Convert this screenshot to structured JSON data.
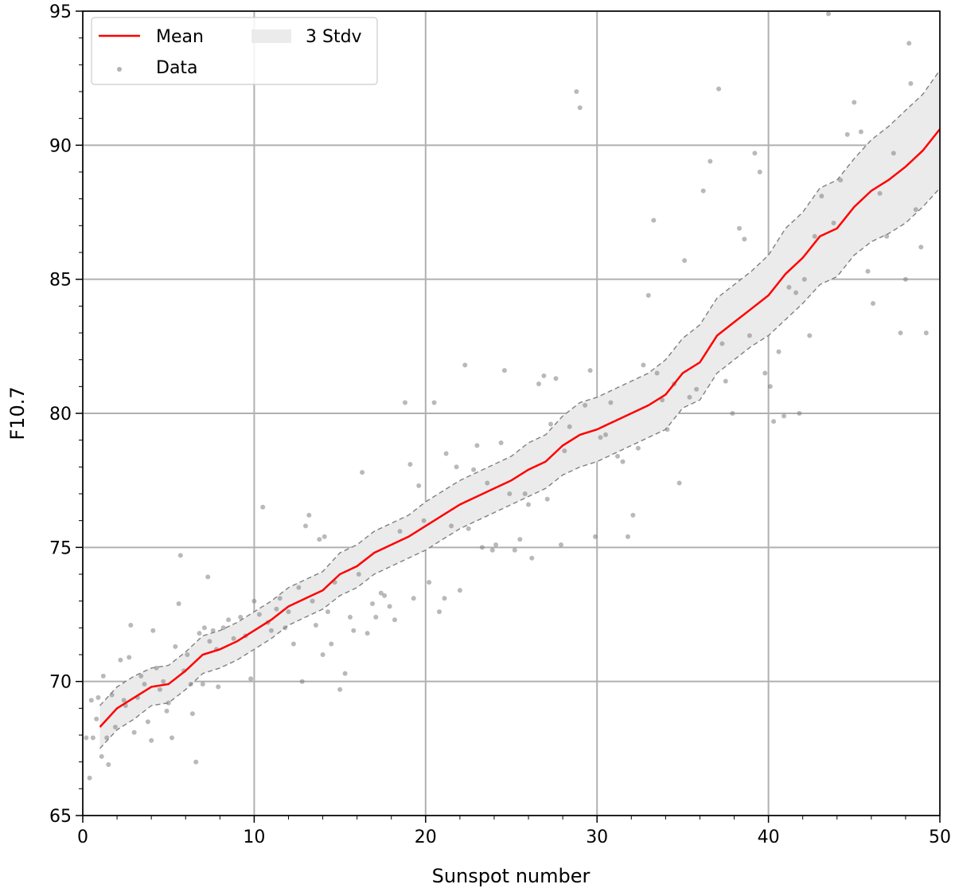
{
  "chart_data": {
    "type": "scatter",
    "xlabel": "Sunspot number",
    "ylabel": "F10.7",
    "xlim": [
      0,
      50
    ],
    "ylim": [
      65,
      95
    ],
    "x_ticks": [
      0,
      10,
      20,
      30,
      40,
      50
    ],
    "y_ticks": [
      65,
      70,
      75,
      80,
      85,
      90,
      95
    ],
    "grid": true,
    "legend_position": "top-left",
    "legend": {
      "mean_label": "Mean",
      "data_label": "Data",
      "band_label": "3 Stdv"
    },
    "colors": {
      "mean": "#ff0000",
      "data": "#808080",
      "band_fill": "#ebebeb",
      "band_edge": "#808080",
      "grid": "#b0b0b0"
    },
    "mean": {
      "x": [
        1,
        2,
        3,
        4,
        5,
        6,
        7,
        8,
        9,
        10,
        11,
        12,
        13,
        14,
        15,
        16,
        17,
        18,
        19,
        20,
        21,
        22,
        23,
        24,
        25,
        26,
        27,
        28,
        29,
        30,
        31,
        32,
        33,
        34,
        35,
        36,
        37,
        38,
        39,
        40,
        41,
        42,
        43,
        44,
        45,
        46,
        47,
        48,
        49,
        50
      ],
      "y": [
        68.3,
        69.0,
        69.4,
        69.8,
        69.9,
        70.4,
        71.0,
        71.2,
        71.5,
        71.9,
        72.3,
        72.8,
        73.1,
        73.4,
        74.0,
        74.3,
        74.8,
        75.1,
        75.4,
        75.8,
        76.2,
        76.6,
        76.9,
        77.2,
        77.5,
        77.9,
        78.2,
        78.8,
        79.2,
        79.4,
        79.7,
        80.0,
        80.3,
        80.7,
        81.5,
        81.9,
        82.9,
        83.4,
        83.9,
        84.4,
        85.2,
        85.8,
        86.6,
        86.9,
        87.7,
        88.3,
        88.7,
        89.2,
        89.8,
        90.6
      ]
    },
    "band": {
      "upper": [
        69.1,
        69.8,
        70.2,
        70.5,
        70.6,
        71.1,
        71.7,
        71.9,
        72.2,
        72.6,
        73.0,
        73.5,
        73.8,
        74.1,
        74.8,
        75.1,
        75.6,
        75.9,
        76.2,
        76.7,
        77.1,
        77.5,
        77.8,
        78.1,
        78.4,
        78.9,
        79.2,
        79.9,
        80.4,
        80.6,
        80.9,
        81.2,
        81.5,
        82.0,
        82.8,
        83.3,
        84.3,
        84.8,
        85.3,
        85.9,
        86.9,
        87.5,
        88.4,
        88.7,
        89.5,
        90.2,
        90.7,
        91.3,
        91.9,
        92.8
      ],
      "lower": [
        67.5,
        68.2,
        68.6,
        69.1,
        69.2,
        69.7,
        70.3,
        70.5,
        70.8,
        71.2,
        71.6,
        72.1,
        72.4,
        72.7,
        73.2,
        73.5,
        74.0,
        74.3,
        74.6,
        74.9,
        75.3,
        75.7,
        76.0,
        76.3,
        76.6,
        76.9,
        77.2,
        77.7,
        78.0,
        78.2,
        78.5,
        78.8,
        79.1,
        79.4,
        80.2,
        80.5,
        81.5,
        82.0,
        82.5,
        82.9,
        83.5,
        84.1,
        84.8,
        85.1,
        85.9,
        86.4,
        86.7,
        87.1,
        87.7,
        88.4
      ]
    },
    "data_points": [
      [
        0.2,
        67.9
      ],
      [
        0.4,
        66.4
      ],
      [
        0.5,
        69.3
      ],
      [
        0.6,
        67.9
      ],
      [
        0.8,
        68.6
      ],
      [
        0.9,
        69.4
      ],
      [
        1.1,
        67.2
      ],
      [
        1.2,
        70.2
      ],
      [
        1.4,
        67.9
      ],
      [
        1.5,
        66.9
      ],
      [
        1.7,
        69.5
      ],
      [
        1.9,
        68.3
      ],
      [
        2.2,
        70.8
      ],
      [
        2.4,
        69.3
      ],
      [
        2.5,
        69.1
      ],
      [
        2.7,
        70.9
      ],
      [
        2.8,
        72.1
      ],
      [
        3.0,
        68.1
      ],
      [
        3.2,
        69.4
      ],
      [
        3.4,
        70.2
      ],
      [
        3.6,
        69.9
      ],
      [
        3.8,
        68.5
      ],
      [
        4.0,
        67.8
      ],
      [
        4.1,
        71.9
      ],
      [
        4.3,
        70.5
      ],
      [
        4.5,
        69.7
      ],
      [
        4.7,
        70.0
      ],
      [
        4.9,
        68.9
      ],
      [
        5.0,
        69.2
      ],
      [
        5.2,
        67.9
      ],
      [
        5.4,
        71.3
      ],
      [
        5.6,
        72.9
      ],
      [
        5.7,
        74.7
      ],
      [
        5.9,
        70.4
      ],
      [
        6.1,
        71.0
      ],
      [
        6.3,
        69.9
      ],
      [
        6.4,
        68.8
      ],
      [
        6.6,
        67.0
      ],
      [
        6.8,
        71.8
      ],
      [
        7.0,
        69.9
      ],
      [
        7.1,
        72.0
      ],
      [
        7.3,
        73.9
      ],
      [
        7.4,
        71.5
      ],
      [
        7.6,
        71.9
      ],
      [
        7.8,
        71.2
      ],
      [
        7.9,
        69.8
      ],
      [
        8.2,
        72.0
      ],
      [
        8.5,
        72.3
      ],
      [
        8.8,
        71.6
      ],
      [
        9.2,
        72.4
      ],
      [
        9.5,
        71.7
      ],
      [
        9.8,
        70.1
      ],
      [
        10.0,
        73.0
      ],
      [
        10.3,
        72.5
      ],
      [
        10.5,
        76.5
      ],
      [
        10.8,
        72.2
      ],
      [
        11.0,
        71.9
      ],
      [
        11.3,
        72.7
      ],
      [
        11.5,
        73.1
      ],
      [
        11.8,
        72.0
      ],
      [
        12.0,
        72.6
      ],
      [
        12.3,
        71.4
      ],
      [
        12.6,
        73.5
      ],
      [
        12.8,
        70.0
      ],
      [
        13.0,
        75.8
      ],
      [
        13.2,
        76.2
      ],
      [
        13.4,
        73.0
      ],
      [
        13.6,
        72.1
      ],
      [
        13.8,
        75.3
      ],
      [
        14.0,
        71.0
      ],
      [
        14.1,
        75.4
      ],
      [
        14.3,
        72.6
      ],
      [
        14.5,
        71.4
      ],
      [
        14.7,
        73.7
      ],
      [
        15.0,
        69.7
      ],
      [
        15.3,
        70.3
      ],
      [
        15.6,
        72.4
      ],
      [
        15.8,
        71.9
      ],
      [
        16.1,
        74.0
      ],
      [
        16.3,
        77.8
      ],
      [
        16.6,
        71.8
      ],
      [
        16.9,
        72.9
      ],
      [
        17.1,
        72.4
      ],
      [
        17.4,
        73.3
      ],
      [
        17.6,
        73.2
      ],
      [
        17.9,
        72.8
      ],
      [
        18.2,
        72.3
      ],
      [
        18.5,
        75.6
      ],
      [
        18.8,
        80.4
      ],
      [
        19.1,
        78.1
      ],
      [
        19.3,
        73.1
      ],
      [
        19.6,
        77.3
      ],
      [
        19.9,
        76.0
      ],
      [
        20.2,
        73.7
      ],
      [
        20.5,
        80.4
      ],
      [
        20.8,
        72.6
      ],
      [
        21.1,
        73.1
      ],
      [
        21.2,
        78.5
      ],
      [
        21.5,
        75.8
      ],
      [
        21.8,
        78.0
      ],
      [
        22.0,
        73.4
      ],
      [
        22.3,
        81.8
      ],
      [
        22.5,
        75.7
      ],
      [
        22.8,
        77.9
      ],
      [
        23.0,
        78.8
      ],
      [
        23.3,
        75.0
      ],
      [
        23.6,
        77.4
      ],
      [
        23.9,
        74.9
      ],
      [
        24.1,
        75.1
      ],
      [
        24.4,
        78.9
      ],
      [
        24.6,
        81.6
      ],
      [
        24.9,
        77.0
      ],
      [
        25.2,
        74.9
      ],
      [
        25.5,
        75.3
      ],
      [
        25.8,
        77.0
      ],
      [
        26.0,
        76.6
      ],
      [
        26.2,
        74.6
      ],
      [
        26.6,
        81.1
      ],
      [
        26.9,
        81.4
      ],
      [
        27.1,
        76.8
      ],
      [
        27.3,
        79.6
      ],
      [
        27.6,
        81.3
      ],
      [
        27.9,
        75.1
      ],
      [
        28.1,
        78.6
      ],
      [
        28.4,
        79.5
      ],
      [
        28.8,
        92.0
      ],
      [
        29.0,
        91.4
      ],
      [
        29.3,
        80.3
      ],
      [
        29.6,
        81.6
      ],
      [
        29.9,
        75.4
      ],
      [
        30.2,
        79.1
      ],
      [
        30.5,
        79.2
      ],
      [
        30.8,
        80.4
      ],
      [
        31.2,
        78.4
      ],
      [
        31.5,
        78.2
      ],
      [
        31.8,
        75.4
      ],
      [
        32.1,
        76.2
      ],
      [
        32.4,
        78.7
      ],
      [
        32.7,
        81.8
      ],
      [
        33.0,
        84.4
      ],
      [
        33.3,
        87.2
      ],
      [
        33.5,
        81.5
      ],
      [
        33.8,
        80.5
      ],
      [
        34.1,
        79.4
      ],
      [
        34.5,
        81.1
      ],
      [
        34.8,
        77.4
      ],
      [
        35.1,
        85.7
      ],
      [
        35.4,
        80.6
      ],
      [
        35.8,
        80.9
      ],
      [
        36.2,
        88.3
      ],
      [
        36.6,
        89.4
      ],
      [
        37.1,
        92.1
      ],
      [
        37.3,
        82.6
      ],
      [
        37.5,
        81.2
      ],
      [
        37.9,
        80.0
      ],
      [
        38.3,
        86.9
      ],
      [
        38.6,
        86.5
      ],
      [
        38.9,
        82.9
      ],
      [
        39.2,
        89.7
      ],
      [
        39.5,
        89.0
      ],
      [
        39.8,
        81.5
      ],
      [
        40.1,
        81.0
      ],
      [
        40.3,
        79.7
      ],
      [
        40.6,
        82.3
      ],
      [
        40.9,
        79.9
      ],
      [
        41.2,
        84.7
      ],
      [
        41.6,
        84.5
      ],
      [
        41.8,
        80.0
      ],
      [
        42.1,
        85.0
      ],
      [
        42.4,
        82.9
      ],
      [
        42.7,
        86.6
      ],
      [
        43.1,
        88.1
      ],
      [
        43.5,
        94.9
      ],
      [
        43.8,
        87.1
      ],
      [
        44.2,
        88.7
      ],
      [
        44.6,
        90.4
      ],
      [
        45.0,
        91.6
      ],
      [
        45.4,
        90.5
      ],
      [
        45.8,
        85.3
      ],
      [
        46.1,
        84.1
      ],
      [
        46.5,
        88.2
      ],
      [
        46.9,
        86.6
      ],
      [
        47.3,
        89.7
      ],
      [
        47.7,
        83.0
      ],
      [
        48.0,
        85.0
      ],
      [
        48.3,
        92.3
      ],
      [
        48.6,
        87.6
      ],
      [
        48.9,
        86.2
      ],
      [
        49.2,
        83.0
      ],
      [
        48.2,
        93.8
      ]
    ]
  }
}
